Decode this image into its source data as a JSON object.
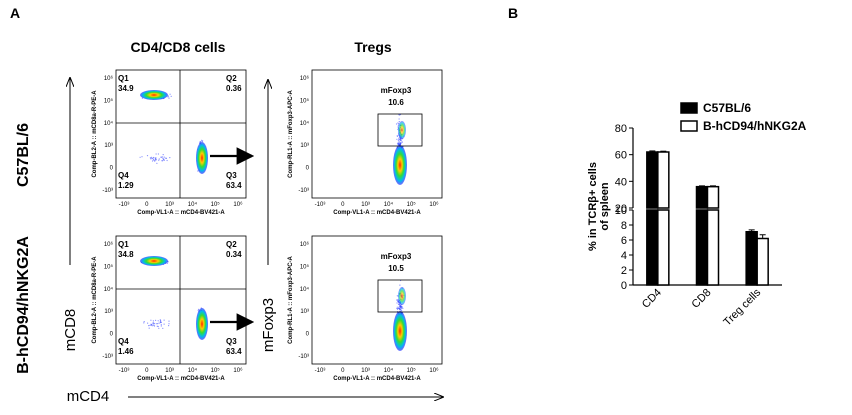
{
  "panels": {
    "a": "A",
    "b": "B"
  },
  "flow": {
    "titles": [
      "CD4/CD8 cells",
      "Tregs"
    ],
    "row_labels": [
      "C57BL/6",
      "B-hCD94/hNKG2A"
    ],
    "outer_y_labels": [
      "mCD8",
      "mFoxp3"
    ],
    "outer_x_label": "mCD4",
    "cd4cd8_axes": {
      "x": "Comp-VL1-A :: mCD4-BV421-A",
      "y": "Comp-BL2-A :: mCD8a-R-PE-A"
    },
    "treg_axes": {
      "x": "Comp-VL1-A :: mCD4-BV421-A",
      "y": "Comp-RL1-A :: mFoxp3-APC-A"
    },
    "x_ticks": [
      "-10³",
      "0",
      "10³",
      "10⁴",
      "10⁵",
      "10⁶"
    ],
    "y_ticks": [
      "10⁶",
      "10⁵",
      "10⁴",
      "10³",
      "0",
      "-10³"
    ],
    "plots": [
      {
        "quadrants": {
          "Q1": "34.9",
          "Q2": "0.36",
          "Q3": "63.4",
          "Q4": "1.29"
        },
        "treg_gate": "mFoxp3",
        "treg_value": "10.6"
      },
      {
        "quadrants": {
          "Q1": "34.8",
          "Q2": "0.34",
          "Q3": "63.4",
          "Q4": "1.46"
        },
        "treg_gate": "mFoxp3",
        "treg_value": "10.5"
      }
    ]
  },
  "colors": {
    "series1": "#000000",
    "series2": "#ffffff",
    "density_low": "#1a1aff",
    "density_high": "#ff2200"
  },
  "chart_data": {
    "type": "bar",
    "categories": [
      "CD4",
      "CD8",
      "Treg cells"
    ],
    "series": [
      {
        "name": "C57BL/6",
        "values": [
          62,
          36,
          7.1
        ],
        "errors": [
          0.8,
          0.6,
          0.25
        ]
      },
      {
        "name": "B-hCD94/hNKG2A",
        "values": [
          62,
          36,
          6.2
        ],
        "errors": [
          0.6,
          0.6,
          0.5
        ]
      }
    ],
    "ylabel": "% in TCRβ+ cells of spleen",
    "broken_axis": {
      "lower": [
        0,
        10
      ],
      "upper": [
        20,
        80
      ]
    },
    "yticks_lower": [
      "0",
      "2",
      "4",
      "6",
      "8",
      "10"
    ],
    "yticks_upper": [
      "20",
      "40",
      "60",
      "80"
    ],
    "legend_position": "top"
  }
}
